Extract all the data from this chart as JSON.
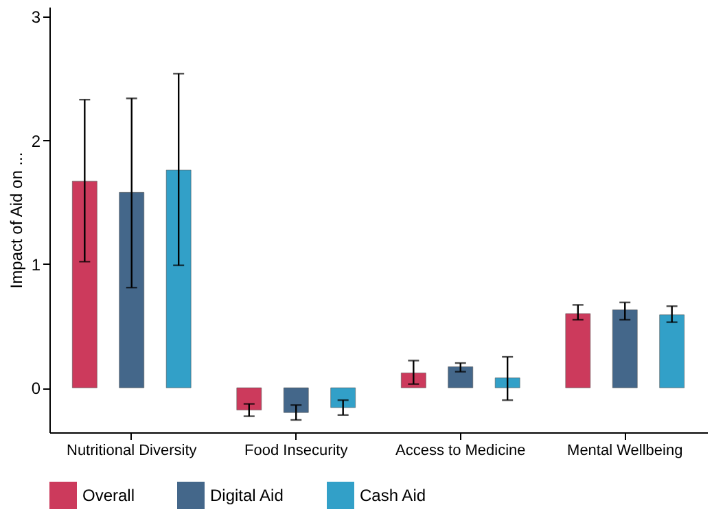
{
  "chart_data": {
    "type": "bar",
    "ylabel": "Impact of Aid on ...",
    "categories": [
      "Nutritional Diversity",
      "Food Insecurity",
      "Access to Medicine",
      "Mental Wellbeing"
    ],
    "series": [
      {
        "name": "Overall",
        "color": "#cc3a5c",
        "values": [
          1.67,
          -0.18,
          0.12,
          0.6
        ],
        "errors": [
          [
            1.02,
            2.33
          ],
          [
            -0.23,
            -0.13
          ],
          [
            0.03,
            0.22
          ],
          [
            0.55,
            0.67
          ]
        ]
      },
      {
        "name": "Digital Aid",
        "color": "#44678a",
        "values": [
          1.58,
          -0.2,
          0.17,
          0.63
        ],
        "errors": [
          [
            0.81,
            2.34
          ],
          [
            -0.26,
            -0.14
          ],
          [
            0.13,
            0.2
          ],
          [
            0.55,
            0.69
          ]
        ]
      },
      {
        "name": "Cash Aid",
        "color": "#32a0c8",
        "values": [
          1.76,
          -0.16,
          0.08,
          0.59
        ],
        "errors": [
          [
            0.99,
            2.54
          ],
          [
            -0.22,
            -0.1
          ],
          [
            -0.1,
            0.25
          ],
          [
            0.53,
            0.66
          ]
        ]
      }
    ],
    "ylim": [
      -0.36,
      3.08
    ],
    "yticks": [
      0,
      1,
      2,
      3
    ],
    "grid": false,
    "legend": "bottom"
  }
}
